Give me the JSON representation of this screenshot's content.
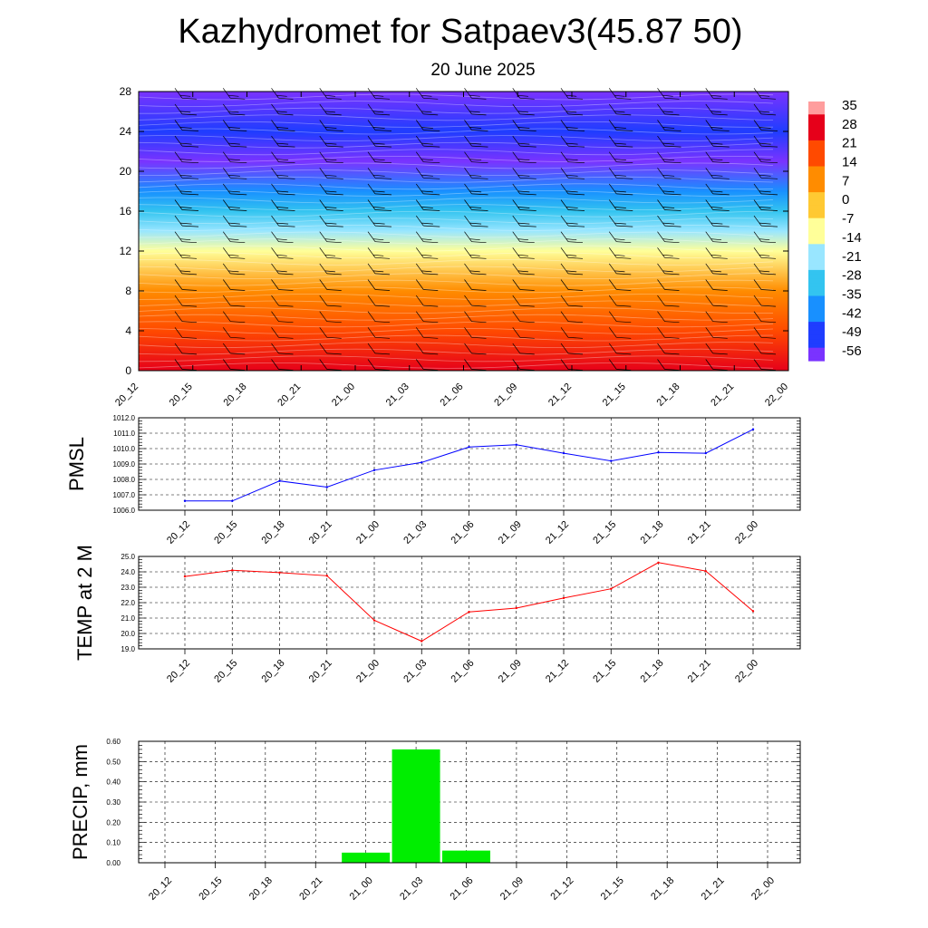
{
  "title": "Kazhydromet for Satpaev3(45.87 50)",
  "subtitle": "20 June 2025",
  "time_labels": [
    "20_12",
    "20_15",
    "20_18",
    "20_21",
    "21_00",
    "21_03",
    "21_06",
    "21_09",
    "21_12",
    "21_15",
    "21_18",
    "21_21",
    "22_00"
  ],
  "chart_data": [
    {
      "type": "heatmap",
      "title": "",
      "xlabel": "",
      "ylabel": "",
      "x": [
        "20_12",
        "20_15",
        "20_18",
        "20_21",
        "21_00",
        "21_03",
        "21_06",
        "21_09",
        "21_12",
        "21_15",
        "21_18",
        "21_21",
        "22_00"
      ],
      "y_ticks": [
        0,
        4,
        8,
        12,
        16,
        20,
        24,
        28
      ],
      "ylim": [
        0,
        28
      ],
      "colorbar_labels": [
        "35",
        "28",
        "21",
        "14",
        "7",
        "0",
        "-7",
        "-14",
        "-21",
        "-28",
        "-35",
        "-42",
        "-49",
        "-56"
      ],
      "colorbar_range": [
        -63,
        42
      ],
      "colors": [
        "#ff9d9d",
        "#e6001a",
        "#ff4a00",
        "#ff8c00",
        "#ffc933",
        "#ffff99",
        "#99e6ff",
        "#33c4f0",
        "#1890ff",
        "#1f3dff",
        "#7a33ff"
      ],
      "profile_by_level": [
        {
          "level": 0,
          "value": 28
        },
        {
          "level": 4,
          "value": 24
        },
        {
          "level": 8,
          "value": 14
        },
        {
          "level": 12,
          "value": -7
        },
        {
          "level": 14,
          "value": -21
        },
        {
          "level": 16,
          "value": -32
        },
        {
          "level": 18,
          "value": -45
        },
        {
          "level": 21,
          "value": -58
        },
        {
          "level": 24,
          "value": -52
        },
        {
          "level": 28,
          "value": -60
        }
      ],
      "wind_barbs": true
    },
    {
      "type": "line",
      "ylabel": "PMSL",
      "x": [
        "20_12",
        "20_15",
        "20_18",
        "20_21",
        "21_00",
        "21_03",
        "21_06",
        "21_09",
        "21_12",
        "21_15",
        "21_18",
        "21_21",
        "22_00"
      ],
      "y_ticks": [
        "1006.0",
        "1007.0",
        "1008.0",
        "1009.0",
        "1010.0",
        "1011.0",
        "1012.0"
      ],
      "ylim": [
        1006.0,
        1012.0
      ],
      "series": [
        {
          "values": [
            1006.6,
            1006.6,
            1007.9,
            1007.5,
            1008.6,
            1009.1,
            1010.1,
            1010.25,
            1009.7,
            1009.2,
            1009.75,
            1009.7,
            1011.25
          ],
          "color": "#0000ff"
        }
      ],
      "grid": true
    },
    {
      "type": "line",
      "ylabel": "TEMP at 2 M",
      "x": [
        "20_12",
        "20_15",
        "20_18",
        "20_21",
        "21_00",
        "21_03",
        "21_06",
        "21_09",
        "21_12",
        "21_15",
        "21_18",
        "21_21",
        "22_00"
      ],
      "y_ticks": [
        "19.0",
        "20.0",
        "21.0",
        "22.0",
        "23.0",
        "24.0",
        "25.0"
      ],
      "ylim": [
        19.0,
        25.0
      ],
      "series": [
        {
          "values": [
            23.7,
            24.1,
            23.95,
            23.75,
            20.85,
            19.5,
            21.4,
            21.65,
            22.3,
            22.9,
            24.6,
            24.05,
            21.45
          ],
          "color": "#ff0000"
        }
      ],
      "grid": true
    },
    {
      "type": "bar",
      "ylabel": "PRECIP, mm",
      "categories": [
        "20_12",
        "20_15",
        "20_18",
        "20_21",
        "21_00",
        "21_03",
        "21_06",
        "21_09",
        "21_12",
        "21_15",
        "21_18",
        "21_21",
        "22_00"
      ],
      "values": [
        0,
        0,
        0,
        0,
        0.05,
        0.56,
        0.06,
        0,
        0,
        0,
        0,
        0,
        0
      ],
      "y_ticks": [
        "0.00",
        "0.10",
        "0.20",
        "0.30",
        "0.40",
        "0.50",
        "0.60"
      ],
      "ylim": [
        0,
        0.6
      ],
      "color": "#00ee00",
      "grid": true
    }
  ]
}
